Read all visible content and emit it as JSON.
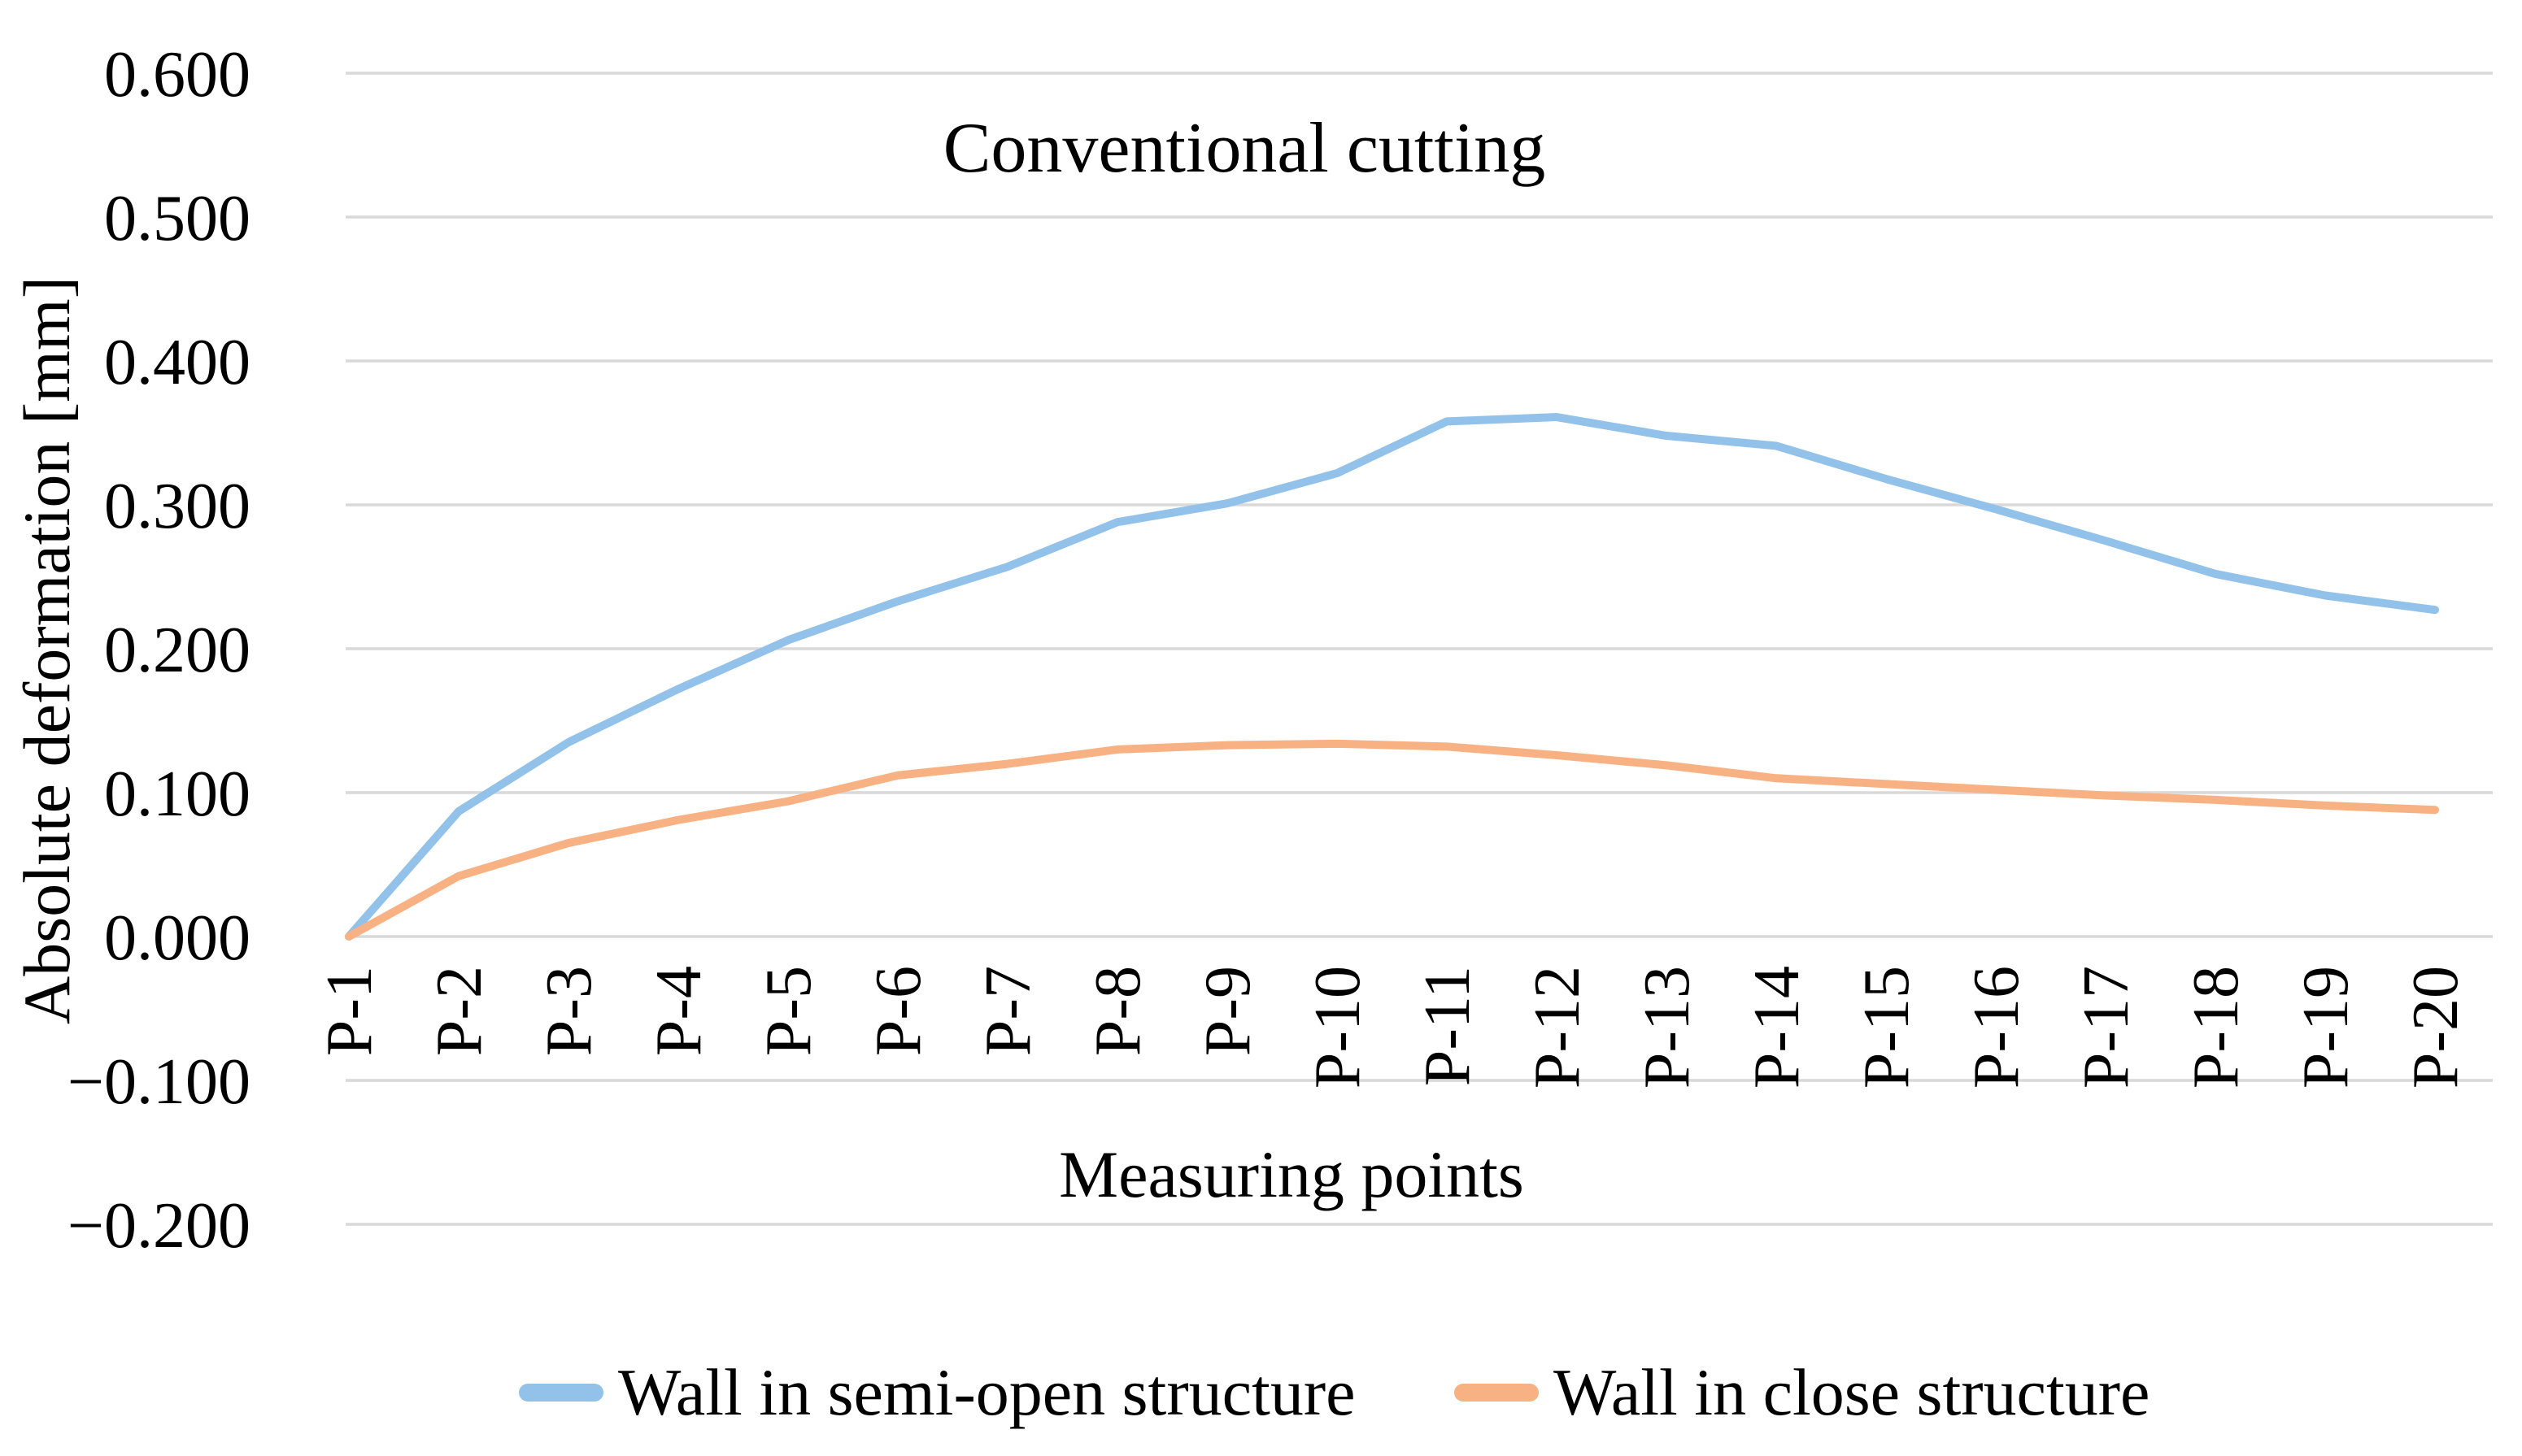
{
  "chart_data": {
    "type": "line",
    "title": "Conventional cutting",
    "xlabel": "Measuring points",
    "ylabel": "Absolute deformation [mm]",
    "categories": [
      "P-1",
      "P-2",
      "P-3",
      "P-4",
      "P-5",
      "P-6",
      "P-7",
      "P-8",
      "P-9",
      "P-10",
      "P-11",
      "P-12",
      "P-13",
      "P-14",
      "P-15",
      "P-16",
      "P-17",
      "P-18",
      "P-19",
      "P-20"
    ],
    "series": [
      {
        "name": "Wall in semi-open structure",
        "color": "#92C1E9",
        "values": [
          0.0,
          0.087,
          0.135,
          0.172,
          0.206,
          0.233,
          0.257,
          0.288,
          0.301,
          0.322,
          0.358,
          0.361,
          0.348,
          0.341,
          0.318,
          0.297,
          0.275,
          0.252,
          0.237,
          0.227
        ]
      },
      {
        "name": "Wall in close structure",
        "color": "#F8B183",
        "values": [
          0.0,
          0.042,
          0.065,
          0.081,
          0.094,
          0.112,
          0.12,
          0.13,
          0.133,
          0.134,
          0.132,
          0.126,
          0.119,
          0.11,
          0.106,
          0.102,
          0.098,
          0.095,
          0.091,
          0.088
        ]
      }
    ],
    "y_ticks": [
      {
        "label": "0.600",
        "value": 0.6
      },
      {
        "label": "0.500",
        "value": 0.5
      },
      {
        "label": "0.400",
        "value": 0.4
      },
      {
        "label": "0.300",
        "value": 0.3
      },
      {
        "label": "0.200",
        "value": 0.2
      },
      {
        "label": "0.100",
        "value": 0.1
      },
      {
        "label": "0.000",
        "value": 0.0
      },
      {
        "label": "−0.100",
        "value": -0.1
      },
      {
        "label": "−0.200",
        "value": -0.2
      }
    ],
    "ylim": [
      -0.2,
      0.6
    ],
    "grid": "horizontal",
    "grid_color": "#D9D9D9",
    "text_color": "#000000",
    "background_color": "#FFFFFF",
    "legend_position": "bottom"
  }
}
